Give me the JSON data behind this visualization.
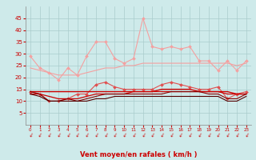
{
  "title": "",
  "xlabel": "Vent moyen/en rafales ( km/h )",
  "x": [
    0,
    1,
    2,
    3,
    4,
    5,
    6,
    7,
    8,
    9,
    10,
    11,
    12,
    13,
    14,
    15,
    16,
    17,
    18,
    19,
    20,
    21,
    22,
    23
  ],
  "series": [
    {
      "label": "rafales_high",
      "color": "#f4a0a0",
      "lw": 0.8,
      "marker": "D",
      "markersize": 2,
      "y": [
        29,
        24,
        22,
        19,
        24,
        21,
        29,
        35,
        35,
        28,
        26,
        28,
        45,
        33,
        32,
        33,
        32,
        33,
        27,
        27,
        23,
        27,
        23,
        27
      ]
    },
    {
      "label": "rafales_low",
      "color": "#f4a0a0",
      "lw": 0.8,
      "marker": null,
      "markersize": 0,
      "y": [
        24,
        23,
        22,
        21,
        21,
        21,
        22,
        23,
        24,
        24,
        25,
        25,
        26,
        26,
        26,
        26,
        26,
        26,
        26,
        26,
        26,
        26,
        25,
        26
      ]
    },
    {
      "label": "moyen_high",
      "color": "#e05050",
      "lw": 0.8,
      "marker": "D",
      "markersize": 2,
      "y": [
        14,
        13,
        10,
        10,
        11,
        13,
        13,
        17,
        18,
        16,
        15,
        15,
        15,
        15,
        17,
        18,
        17,
        16,
        15,
        15,
        16,
        11,
        13,
        14
      ]
    },
    {
      "label": "moyen_mid1",
      "color": "#cc0000",
      "lw": 1.0,
      "marker": null,
      "markersize": 0,
      "y": [
        14,
        14,
        14,
        14,
        14,
        14,
        14,
        14,
        14,
        14,
        14,
        14,
        14,
        14,
        15,
        15,
        15,
        15,
        14,
        14,
        14,
        14,
        13,
        13
      ]
    },
    {
      "label": "moyen_mid2",
      "color": "#cc0000",
      "lw": 0.9,
      "marker": null,
      "markersize": 0,
      "y": [
        13,
        13,
        12,
        11,
        11,
        11,
        12,
        13,
        13,
        13,
        13,
        14,
        14,
        14,
        14,
        14,
        14,
        14,
        14,
        14,
        14,
        13,
        13,
        13
      ]
    },
    {
      "label": "moyen_low",
      "color": "#880000",
      "lw": 0.8,
      "marker": null,
      "markersize": 0,
      "y": [
        14,
        13,
        10,
        10,
        11,
        10,
        11,
        12,
        13,
        13,
        13,
        13,
        13,
        13,
        13,
        14,
        14,
        14,
        14,
        13,
        13,
        11,
        11,
        13
      ]
    },
    {
      "label": "moyen_lowest",
      "color": "#550000",
      "lw": 0.8,
      "marker": null,
      "markersize": 0,
      "y": [
        13,
        12,
        10,
        10,
        10,
        10,
        10,
        11,
        11,
        12,
        12,
        12,
        12,
        12,
        12,
        12,
        12,
        12,
        12,
        12,
        12,
        10,
        10,
        12
      ]
    }
  ],
  "ylim": [
    0,
    50
  ],
  "yticks": [
    5,
    10,
    15,
    20,
    25,
    30,
    35,
    40,
    45
  ],
  "xticks": [
    0,
    1,
    2,
    3,
    4,
    5,
    6,
    7,
    8,
    9,
    10,
    11,
    12,
    13,
    14,
    15,
    16,
    17,
    18,
    19,
    20,
    21,
    22,
    23
  ],
  "bg_color": "#ceeaea",
  "grid_color": "#aacccc",
  "tick_color": "#cc0000",
  "label_color": "#cc0000"
}
